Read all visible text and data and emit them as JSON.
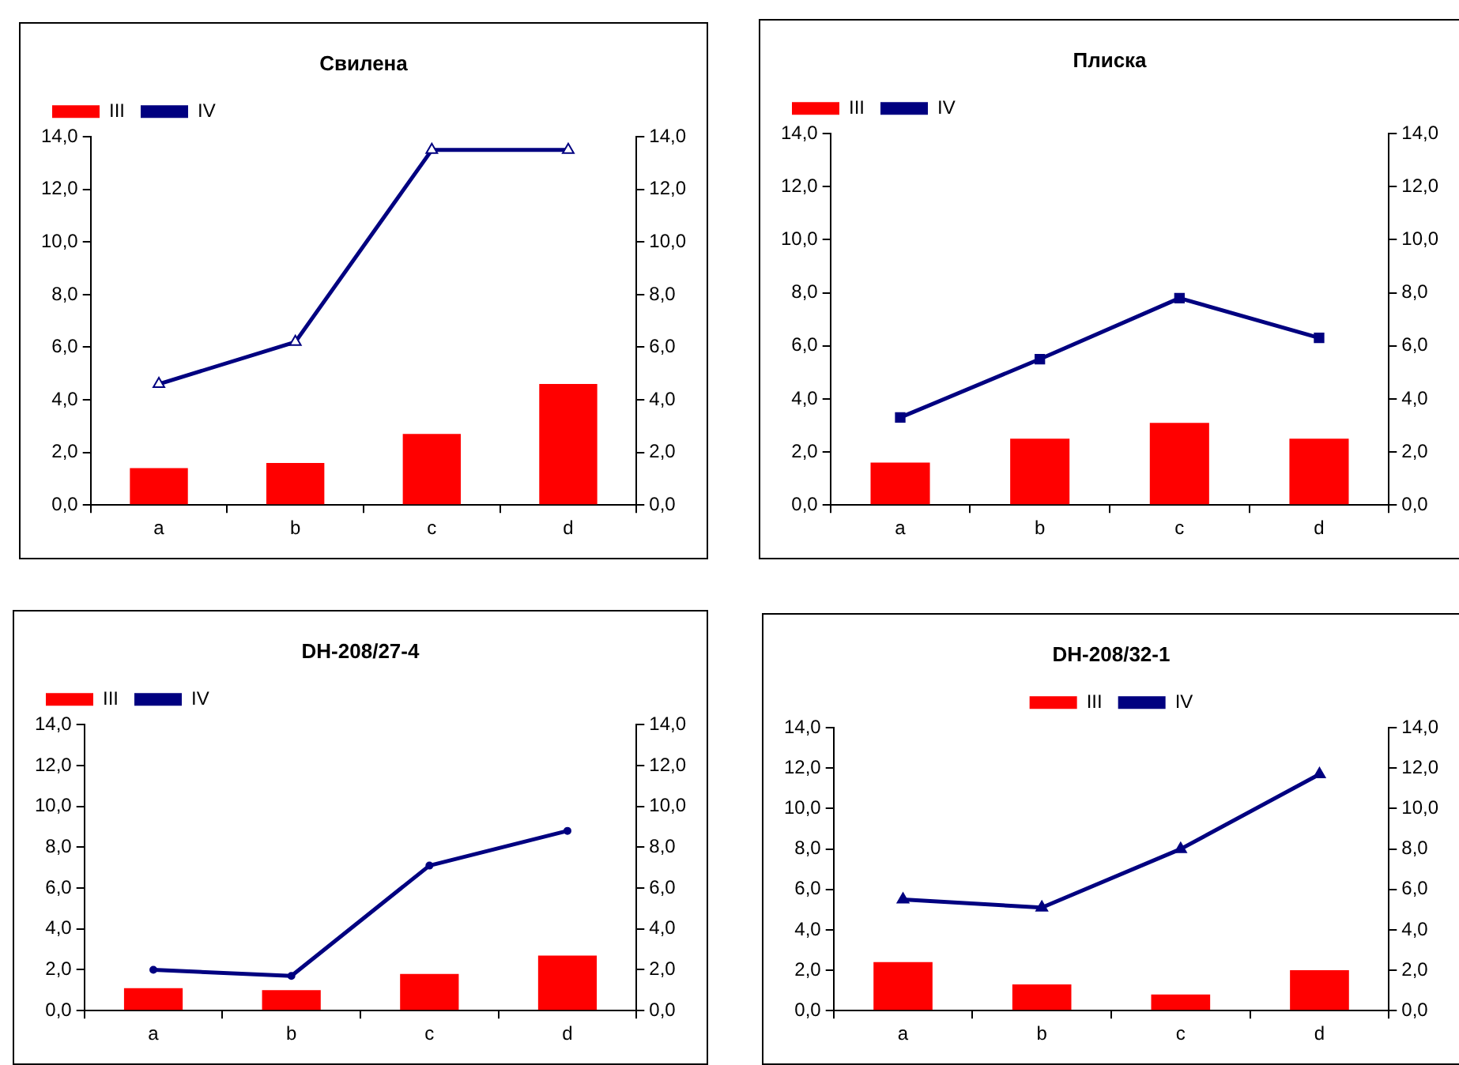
{
  "chart_data": [
    {
      "type": "bar",
      "title": "Свилена",
      "categories": [
        "a",
        "b",
        "c",
        "d"
      ],
      "series": [
        {
          "name": "III",
          "color": "#ff0000",
          "values": [
            1.4,
            1.6,
            2.7,
            4.6
          ]
        },
        {
          "name": "IV",
          "type": "line",
          "axis": "y2",
          "color": "#000080",
          "values": [
            4.6,
            6.2,
            13.5,
            13.5
          ]
        }
      ],
      "ylim": [
        0,
        14
      ],
      "yticks": [
        {
          "value": 0,
          "label": "0,0"
        },
        {
          "value": 2,
          "label": "2,0"
        },
        {
          "value": 4,
          "label": "4,0"
        },
        {
          "value": 6,
          "label": "6,0"
        },
        {
          "value": 8,
          "label": "8,0"
        },
        {
          "value": 10,
          "label": "10,0"
        },
        {
          "value": 12,
          "label": "12,0"
        },
        {
          "value": 14,
          "label": "14,0"
        }
      ],
      "y2lim": [
        0,
        14
      ],
      "y2ticks": [
        {
          "value": 0,
          "label": "0,0"
        },
        {
          "value": 2,
          "label": "2,0"
        },
        {
          "value": 4,
          "label": "4,0"
        },
        {
          "value": 6,
          "label": "6,0"
        },
        {
          "value": 8,
          "label": "8,0"
        },
        {
          "value": 10,
          "label": "10,0"
        },
        {
          "value": 12,
          "label": "12,0"
        },
        {
          "value": 14,
          "label": "14,0"
        }
      ],
      "grid": false,
      "legend": "top left",
      "marker": "triangle"
    },
    {
      "type": "bar",
      "title": "Плиска",
      "categories": [
        "a",
        "b",
        "c",
        "d"
      ],
      "series": [
        {
          "name": "III",
          "color": "#ff0000",
          "values": [
            1.6,
            2.5,
            3.1,
            2.5
          ]
        },
        {
          "name": "IV",
          "type": "line",
          "axis": "y2",
          "color": "#000080",
          "values": [
            3.3,
            5.5,
            7.8,
            6.3
          ]
        }
      ],
      "ylim": [
        0,
        14
      ],
      "yticks": [
        {
          "value": 0,
          "label": "0,0"
        },
        {
          "value": 2,
          "label": "2,0"
        },
        {
          "value": 4,
          "label": "4,0"
        },
        {
          "value": 6,
          "label": "6,0"
        },
        {
          "value": 8,
          "label": "8,0"
        },
        {
          "value": 10,
          "label": "10,0"
        },
        {
          "value": 12,
          "label": "12,0"
        },
        {
          "value": 14,
          "label": "14,0"
        }
      ],
      "y2lim": [
        0,
        14
      ],
      "y2ticks": [
        {
          "value": 0,
          "label": "0,0"
        },
        {
          "value": 2,
          "label": "2,0"
        },
        {
          "value": 4,
          "label": "4,0"
        },
        {
          "value": 6,
          "label": "6,0"
        },
        {
          "value": 8,
          "label": "8,0"
        },
        {
          "value": 10,
          "label": "10,0"
        },
        {
          "value": 12,
          "label": "12,0"
        },
        {
          "value": 14,
          "label": "14,0"
        }
      ],
      "grid": false,
      "legend": "top left",
      "marker": "square"
    },
    {
      "type": "bar",
      "title": "DH-208/27-4",
      "categories": [
        "a",
        "b",
        "c",
        "d"
      ],
      "series": [
        {
          "name": "III",
          "color": "#ff0000",
          "values": [
            1.1,
            1.0,
            1.8,
            2.7
          ]
        },
        {
          "name": "IV",
          "type": "line",
          "axis": "y2",
          "color": "#000080",
          "values": [
            2.0,
            1.7,
            7.1,
            8.8
          ]
        }
      ],
      "ylim": [
        0,
        14
      ],
      "yticks": [
        {
          "value": 0,
          "label": "0,0"
        },
        {
          "value": 2,
          "label": "2,0"
        },
        {
          "value": 4,
          "label": "4,0"
        },
        {
          "value": 6,
          "label": "6,0"
        },
        {
          "value": 8,
          "label": "8,0"
        },
        {
          "value": 10,
          "label": "10,0"
        },
        {
          "value": 12,
          "label": "12,0"
        },
        {
          "value": 14,
          "label": "14,0"
        }
      ],
      "y2lim": [
        0,
        14
      ],
      "y2ticks": [
        {
          "value": 0,
          "label": "0,0"
        },
        {
          "value": 2,
          "label": "2,0"
        },
        {
          "value": 4,
          "label": "4,0"
        },
        {
          "value": 6,
          "label": "6,0"
        },
        {
          "value": 8,
          "label": "8,0"
        },
        {
          "value": 10,
          "label": "10,0"
        },
        {
          "value": 12,
          "label": "12,0"
        },
        {
          "value": 14,
          "label": "14,0"
        }
      ],
      "grid": false,
      "legend": "top left",
      "marker": "circle"
    },
    {
      "type": "bar",
      "title": "DH-208/32-1",
      "categories": [
        "a",
        "b",
        "c",
        "d"
      ],
      "series": [
        {
          "name": "III",
          "color": "#ff0000",
          "values": [
            2.4,
            1.3,
            0.8,
            2.0
          ]
        },
        {
          "name": "IV",
          "type": "line",
          "axis": "y2",
          "color": "#000080",
          "values": [
            5.5,
            5.1,
            8.0,
            11.7
          ]
        }
      ],
      "ylim": [
        0,
        14
      ],
      "yticks": [
        {
          "value": 0,
          "label": "0,0"
        },
        {
          "value": 2,
          "label": "2,0"
        },
        {
          "value": 4,
          "label": "4,0"
        },
        {
          "value": 6,
          "label": "6,0"
        },
        {
          "value": 8,
          "label": "8,0"
        },
        {
          "value": 10,
          "label": "10,0"
        },
        {
          "value": 12,
          "label": "12,0"
        },
        {
          "value": 14,
          "label": "14,0"
        }
      ],
      "y2lim": [
        0,
        14
      ],
      "y2ticks": [
        {
          "value": 0,
          "label": "0,0"
        },
        {
          "value": 2,
          "label": "2,0"
        },
        {
          "value": 4,
          "label": "4,0"
        },
        {
          "value": 6,
          "label": "6,0"
        },
        {
          "value": 8,
          "label": "8,0"
        },
        {
          "value": 10,
          "label": "10,0"
        },
        {
          "value": 12,
          "label": "12,0"
        },
        {
          "value": 14,
          "label": "14,0"
        }
      ],
      "grid": false,
      "legend": "top",
      "marker": "triangle"
    }
  ]
}
